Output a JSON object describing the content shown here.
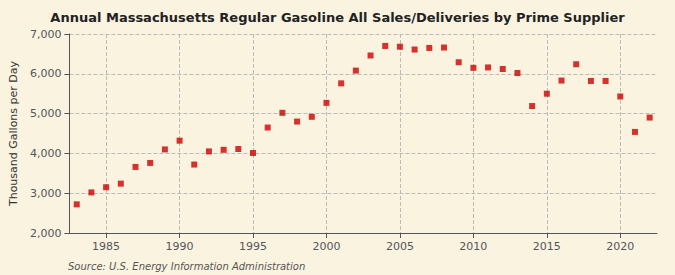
{
  "chart_data": {
    "type": "scatter",
    "title": "Annual Massachusetts Regular Gasoline All Sales/Deliveries by Prime Supplier",
    "ylabel": "Thousand Gallons per Day",
    "source": "Source: U.S. Energy Information Administration",
    "x": [
      1983,
      1984,
      1985,
      1986,
      1987,
      1988,
      1989,
      1990,
      1991,
      1992,
      1993,
      1994,
      1995,
      1996,
      1997,
      1998,
      1999,
      2000,
      2001,
      2002,
      2003,
      2004,
      2005,
      2006,
      2007,
      2008,
      2009,
      2010,
      2011,
      2012,
      2013,
      2014,
      2015,
      2016,
      2017,
      2018,
      2019,
      2020,
      2021,
      2022
    ],
    "values": [
      2720,
      3020,
      3150,
      3240,
      3660,
      3760,
      4100,
      4320,
      3720,
      4050,
      4090,
      4110,
      4010,
      4650,
      5020,
      4800,
      4920,
      5270,
      5760,
      6080,
      6460,
      6700,
      6680,
      6610,
      6650,
      6660,
      6290,
      6150,
      6160,
      6120,
      6020,
      5190,
      5500,
      5830,
      6240,
      5820,
      5820,
      5430,
      4540,
      4900
    ],
    "color": "#cc0000",
    "marker": "square",
    "xlim": [
      1982.5,
      2022.5
    ],
    "xticks": [
      1985,
      1990,
      1995,
      2000,
      2005,
      2010,
      2015,
      2020
    ],
    "ylim": [
      2000,
      7000
    ],
    "yticks": [
      {
        "value": 2000,
        "label": "2,000"
      },
      {
        "value": 3000,
        "label": "3,000"
      },
      {
        "value": 4000,
        "label": "4,000"
      },
      {
        "value": 5000,
        "label": "5,000"
      },
      {
        "value": 6000,
        "label": "6,000"
      },
      {
        "value": 7000,
        "label": "7,000"
      }
    ],
    "grid": true
  }
}
